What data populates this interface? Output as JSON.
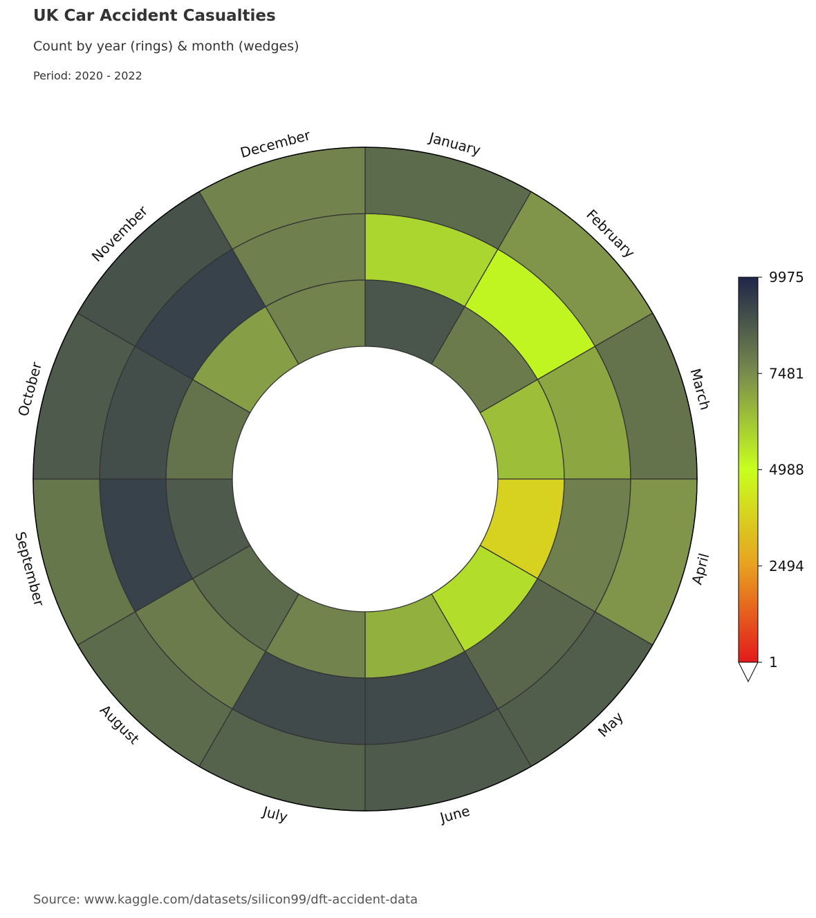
{
  "header": {
    "title": "UK Car Accident Casualties",
    "subtitle": "Count by year (rings) & month (wedges)",
    "period": "Period: 2020 - 2022"
  },
  "footer": {
    "source": "Source: www.kaggle.com/datasets/silicon99/dft-accident-data"
  },
  "colors": {
    "wedge_edge": "#333333",
    "outer_edge": "#000000",
    "colormap": [
      "#e31a1c",
      "#e8a020",
      "#c8ff1e",
      "#7a8c4d",
      "#20264a"
    ]
  },
  "chart_data": {
    "type": "radial-heatmap",
    "title": "UK Car Accident Casualties",
    "subtitle": "Count by year (rings) & month (wedges)",
    "months": [
      "January",
      "February",
      "March",
      "April",
      "May",
      "June",
      "July",
      "August",
      "September",
      "October",
      "November",
      "December"
    ],
    "rings": [
      {
        "values": [
          8800,
          7900,
          6400,
          3800,
          5700,
          6700,
          7700,
          8300,
          8700,
          8100,
          7100,
          7700
        ]
      },
      {
        "values": [
          5900,
          5200,
          6900,
          7800,
          8400,
          9100,
          9100,
          7900,
          9300,
          9000,
          9300,
          7800
        ]
      },
      {
        "values": [
          8300,
          7300,
          8100,
          7300,
          8600,
          8700,
          8500,
          8300,
          8000,
          8700,
          8900,
          7700
        ]
      }
    ],
    "colorbar": {
      "min": 1,
      "max": 9975,
      "ticks": [
        "9975",
        "7481",
        "4988",
        "2494",
        "1"
      ],
      "extend": "min"
    }
  }
}
